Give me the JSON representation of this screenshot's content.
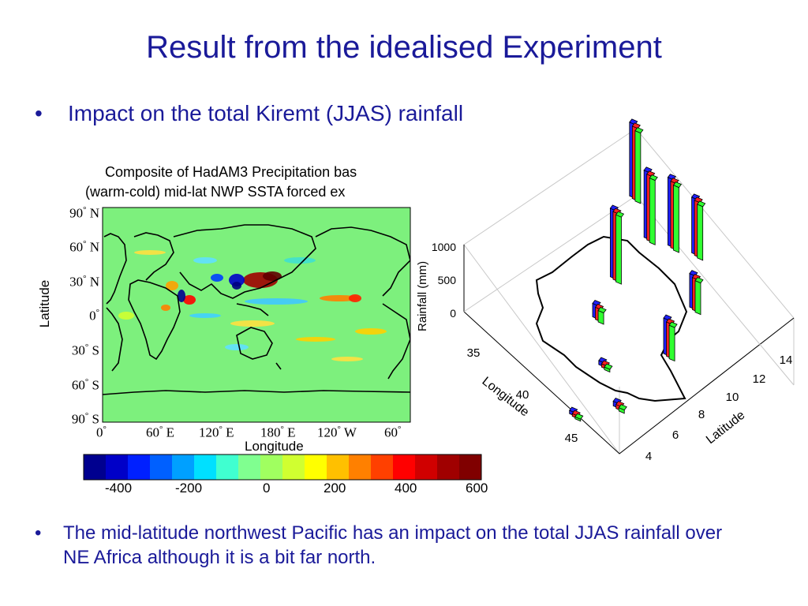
{
  "slide": {
    "title": "Result from the idealised Experiment",
    "bullet1": "Impact on the total Kiremt (JJAS) rainfall",
    "bullet2": "The mid-latitude northwest Pacific has an impact on the total JJAS rainfall over NE Africa although it is a bit far north.",
    "bullet_symbol": "•"
  },
  "map": {
    "title_line1": "Composite of HadAM3 Precipitation bas",
    "title_line2": "(warm-cold) mid-lat NWP SSTA forced ex",
    "ylabel": "Latitude",
    "xlabel": "Longitude",
    "lat_ticks": [
      {
        "v": "90",
        "h": "N"
      },
      {
        "v": "60",
        "h": "N"
      },
      {
        "v": "30",
        "h": "N"
      },
      {
        "v": "0",
        "h": ""
      },
      {
        "v": "30",
        "h": "S"
      },
      {
        "v": "60",
        "h": "S"
      },
      {
        "v": "90",
        "h": "S"
      }
    ],
    "lon_ticks": [
      {
        "v": "0",
        "h": ""
      },
      {
        "v": "60",
        "h": "E"
      },
      {
        "v": "120",
        "h": "E"
      },
      {
        "v": "180",
        "h": "E"
      },
      {
        "v": "120",
        "h": "W"
      },
      {
        "v": "60",
        "h": ""
      }
    ],
    "degree": "°",
    "background_color": "#7df07d"
  },
  "colorbar": {
    "ticks": [
      "-400",
      "-200",
      "0",
      "200",
      "400",
      "600"
    ],
    "colors": [
      "#00008f",
      "#0000c8",
      "#0020ff",
      "#0060ff",
      "#00a0ff",
      "#00e0ff",
      "#40ffd0",
      "#80ff90",
      "#a0ff60",
      "#d0ff30",
      "#ffff00",
      "#ffc000",
      "#ff8000",
      "#ff4000",
      "#ff0000",
      "#d00000",
      "#a00000",
      "#800000"
    ]
  },
  "chart_data": {
    "type": "bar",
    "subtype": "3d-bar",
    "zlabel": "Rainfall (mm)",
    "xlabel": "Longitude",
    "ylabel": "Latitude",
    "z_ticks": [
      "0",
      "500",
      "1000"
    ],
    "x_ticks": [
      "35",
      "40",
      "45"
    ],
    "y_ticks": [
      "4",
      "6",
      "8",
      "10",
      "12",
      "14"
    ],
    "series_colors": [
      "#2020ff",
      "#ff2020",
      "#30ff30"
    ],
    "bars": [
      {
        "lon": 35.5,
        "lat": 13.5,
        "values": [
          1100,
          1080,
          1050
        ]
      },
      {
        "lon": 37.5,
        "lat": 12.5,
        "values": [
          1000,
          980,
          960
        ]
      },
      {
        "lon": 38.5,
        "lat": 13.0,
        "values": [
          1010,
          990,
          970
        ]
      },
      {
        "lon": 39.5,
        "lat": 13.5,
        "values": [
          830,
          820,
          800
        ]
      },
      {
        "lon": 38.0,
        "lat": 10.0,
        "values": [
          1020,
          1010,
          1000
        ]
      },
      {
        "lon": 39.0,
        "lat": 8.0,
        "values": [
          200,
          180,
          170
        ]
      },
      {
        "lon": 41.5,
        "lat": 11.5,
        "values": [
          500,
          480,
          470
        ]
      },
      {
        "lon": 42.5,
        "lat": 9.0,
        "values": [
          530,
          510,
          500
        ]
      },
      {
        "lon": 41.0,
        "lat": 6.5,
        "values": [
          60,
          50,
          40
        ]
      },
      {
        "lon": 43.0,
        "lat": 5.5,
        "values": [
          70,
          60,
          50
        ]
      },
      {
        "lon": 42.0,
        "lat": 3.8,
        "values": [
          50,
          40,
          30
        ]
      }
    ]
  }
}
